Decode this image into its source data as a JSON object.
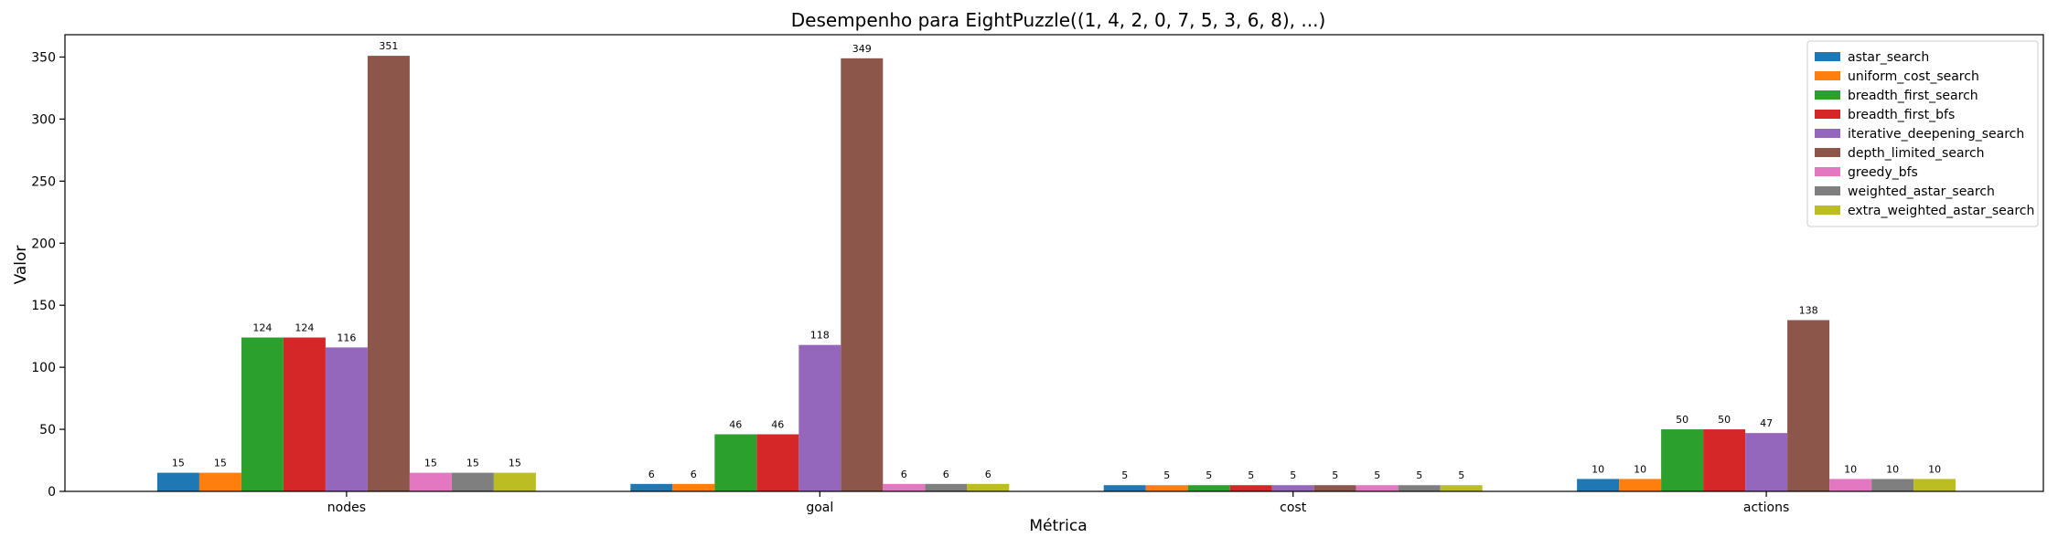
{
  "chart_data": {
    "type": "bar",
    "title": "Desempenho para EightPuzzle((1, 4, 2, 0, 7, 5, 3, 6, 8), ...)",
    "xlabel": "Métrica",
    "ylabel": "Valor",
    "categories": [
      "nodes",
      "goal",
      "cost",
      "actions"
    ],
    "ylim": [
      0,
      368
    ],
    "yticks": [
      0,
      50,
      100,
      150,
      200,
      250,
      300,
      350
    ],
    "grid": false,
    "legend_position": "top-right",
    "series": [
      {
        "name": "astar_search",
        "color": "#1f77b4",
        "values": [
          15,
          6,
          5,
          10
        ]
      },
      {
        "name": "uniform_cost_search",
        "color": "#ff7f0e",
        "values": [
          15,
          6,
          5,
          10
        ]
      },
      {
        "name": "breadth_first_search",
        "color": "#2ca02c",
        "values": [
          124,
          46,
          5,
          50
        ]
      },
      {
        "name": "breadth_first_bfs",
        "color": "#d62728",
        "values": [
          124,
          46,
          5,
          50
        ]
      },
      {
        "name": "iterative_deepening_search",
        "color": "#9467bd",
        "values": [
          116,
          118,
          5,
          47
        ]
      },
      {
        "name": "depth_limited_search",
        "color": "#8c564b",
        "values": [
          351,
          349,
          5,
          138
        ]
      },
      {
        "name": "greedy_bfs",
        "color": "#e377c2",
        "values": [
          15,
          6,
          5,
          10
        ]
      },
      {
        "name": "weighted_astar_search",
        "color": "#7f7f7f",
        "values": [
          15,
          6,
          5,
          10
        ]
      },
      {
        "name": "extra_weighted_astar_search",
        "color": "#bcbd22",
        "values": [
          15,
          6,
          5,
          10
        ]
      }
    ]
  }
}
